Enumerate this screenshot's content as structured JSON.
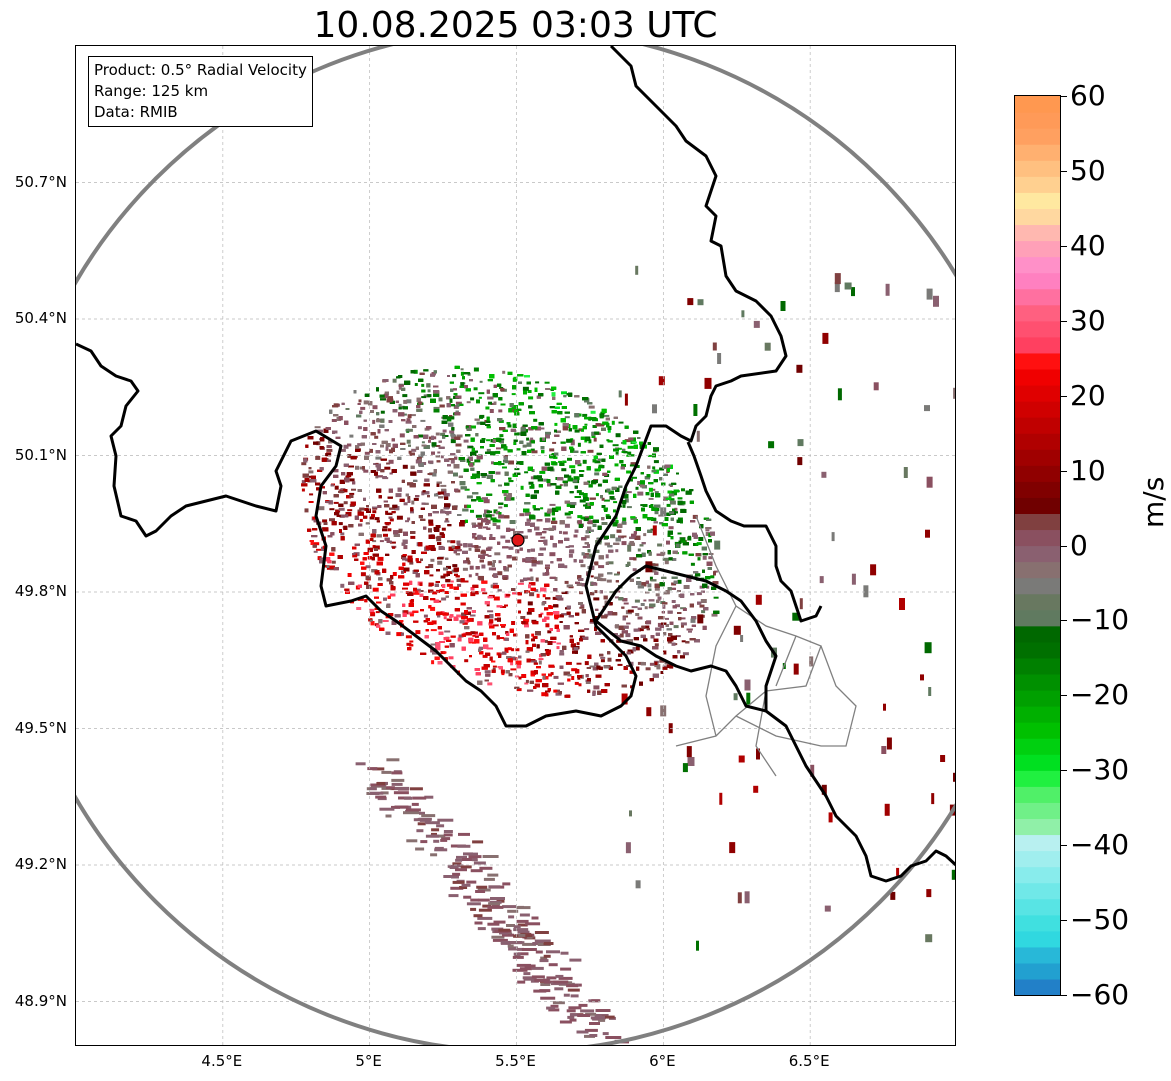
{
  "title": "10.08.2025 03:03 UTC",
  "info": {
    "product": "Product: 0.5° Radial Velocity",
    "range": "Range: 125 km",
    "source": "Data: RMIB"
  },
  "map": {
    "lon_min": 4.0,
    "lon_max": 7.0,
    "lat_min": 48.8,
    "lat_max": 51.0,
    "radar_site": {
      "lon": 5.505,
      "lat": 49.914
    },
    "range_ring_km": 125,
    "grid": true,
    "lat_ticks": [
      {
        "value": 50.7,
        "label": "50.7°N"
      },
      {
        "value": 50.4,
        "label": "50.4°N"
      },
      {
        "value": 50.1,
        "label": "50.1°N"
      },
      {
        "value": 49.8,
        "label": "49.8°N"
      },
      {
        "value": 49.5,
        "label": "49.5°N"
      },
      {
        "value": 49.2,
        "label": "49.2°N"
      },
      {
        "value": 48.9,
        "label": "48.9°N"
      }
    ],
    "lon_ticks": [
      {
        "value": 4.5,
        "label": "4.5°E"
      },
      {
        "value": 5.0,
        "label": "5°E"
      },
      {
        "value": 5.5,
        "label": "5.5°E"
      },
      {
        "value": 6.0,
        "label": "6°E"
      },
      {
        "value": 6.5,
        "label": "6.5°E"
      }
    ],
    "border_color": "#000000",
    "ring_color": "#808080",
    "province_color": "#808080"
  },
  "colorbar": {
    "label": "m/s",
    "min": -60,
    "max": 60,
    "ticks": [
      {
        "value": 60,
        "label": "60"
      },
      {
        "value": 50,
        "label": "50"
      },
      {
        "value": 40,
        "label": "40"
      },
      {
        "value": 30,
        "label": "30"
      },
      {
        "value": 20,
        "label": "20"
      },
      {
        "value": 10,
        "label": "10"
      },
      {
        "value": 0,
        "label": "0"
      },
      {
        "value": -10,
        "label": "−10"
      },
      {
        "value": -20,
        "label": "−20"
      },
      {
        "value": -30,
        "label": "−30"
      },
      {
        "value": -40,
        "label": "−40"
      },
      {
        "value": -50,
        "label": "−50"
      },
      {
        "value": -60,
        "label": "−60"
      }
    ],
    "colors": [
      "#2280c8",
      "#22a0d0",
      "#28b8d8",
      "#30d8e0",
      "#40e0e0",
      "#58e4e4",
      "#70e8e8",
      "#88ecec",
      "#a0eeee",
      "#b8f0f0",
      "#90f0a8",
      "#70f088",
      "#50f068",
      "#20f040",
      "#00e020",
      "#00d010",
      "#00c000",
      "#00b000",
      "#00a000",
      "#009000",
      "#008000",
      "#007000",
      "#006800",
      "#607a60",
      "#687860",
      "#7a7a78",
      "#887070",
      "#8a6070",
      "#8a5060",
      "#804040",
      "#700000",
      "#800000",
      "#900000",
      "#a00000",
      "#b00000",
      "#c00000",
      "#d00000",
      "#e00000",
      "#f00000",
      "#ff1010",
      "#ff4060",
      "#ff5070",
      "#ff6080",
      "#ff70a0",
      "#ff80c0",
      "#ff90c8",
      "#ffa0b8",
      "#ffb8b0",
      "#ffd8a0",
      "#ffe8a0",
      "#ffd090",
      "#ffc080",
      "#ffb070",
      "#ffa060",
      "#ff9a58",
      "#ff9850"
    ]
  }
}
